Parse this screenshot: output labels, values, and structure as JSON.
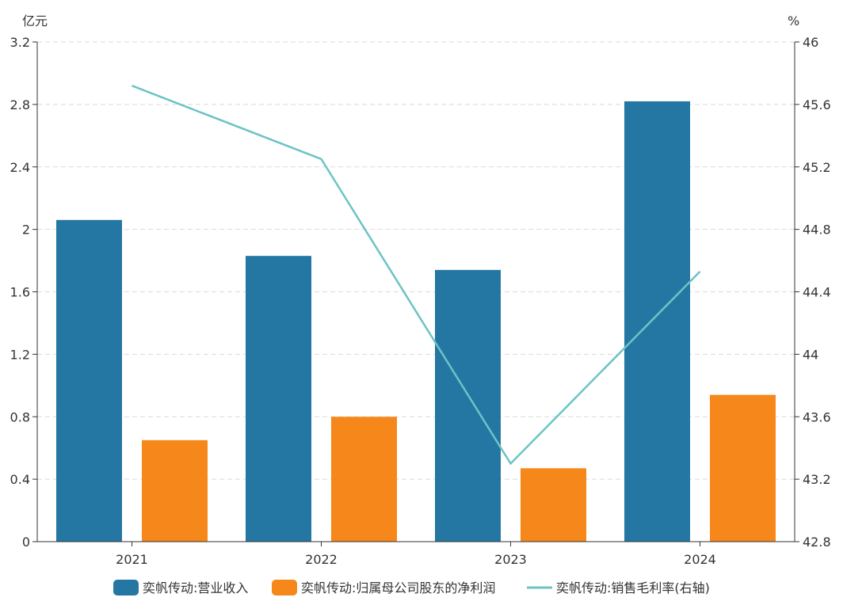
{
  "chart_data": {
    "type": "bar",
    "categories": [
      "2021",
      "2022",
      "2023",
      "2024"
    ],
    "left_axis": {
      "unit": "亿元",
      "ylim": [
        0,
        3.2
      ],
      "ticks": [
        0,
        0.4,
        0.8,
        1.2,
        1.6,
        2,
        2.4,
        2.8,
        3.2
      ],
      "tick_labels": [
        "0",
        "0.4",
        "0.8",
        "1.2",
        "1.6",
        "2",
        "2.4",
        "2.8",
        "3.2"
      ]
    },
    "right_axis": {
      "unit": "%",
      "ylim": [
        42.8,
        46
      ],
      "ticks": [
        42.8,
        43.2,
        43.6,
        44,
        44.4,
        44.8,
        45.2,
        45.6,
        46
      ],
      "tick_labels": [
        "42.8",
        "43.2",
        "43.6",
        "44",
        "44.4",
        "44.8",
        "45.2",
        "45.6",
        "46"
      ]
    },
    "series": [
      {
        "name": "奕帆传动:营业收入",
        "type": "bar",
        "axis": "left",
        "color": "#2577a3",
        "values": [
          2.06,
          1.83,
          1.74,
          2.82
        ]
      },
      {
        "name": "奕帆传动:归属母公司股东的净利润",
        "type": "bar",
        "axis": "left",
        "color": "#f5871b",
        "values": [
          0.65,
          0.8,
          0.47,
          0.94
        ]
      },
      {
        "name": "奕帆传动:销售毛利率(右轴)",
        "type": "line",
        "axis": "right",
        "color": "#6cc3c6",
        "values": [
          45.72,
          45.25,
          43.3,
          44.53
        ]
      }
    ],
    "grid": "horizontal-dashed",
    "legend_position": "bottom"
  }
}
